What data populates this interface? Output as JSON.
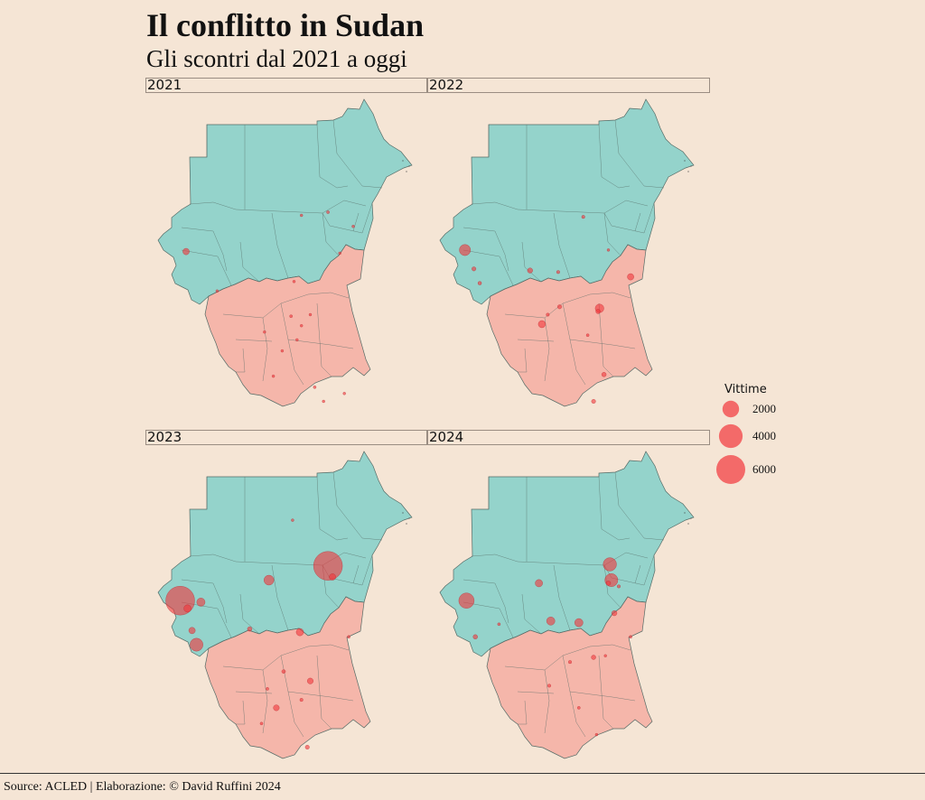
{
  "title": "Il conflitto in Sudan",
  "subtitle": "Gli scontri dal 2021 a oggi",
  "panels": [
    {
      "year": "2021",
      "events": [
        {
          "lon": 22.9,
          "lat": 13.2,
          "victims": 300
        },
        {
          "lon": 30.7,
          "lat": 15.5,
          "victims": 50
        },
        {
          "lon": 32.5,
          "lat": 15.7,
          "victims": 60
        },
        {
          "lon": 34.2,
          "lat": 14.8,
          "victims": 40
        },
        {
          "lon": 30.2,
          "lat": 11.3,
          "victims": 40
        },
        {
          "lon": 33.3,
          "lat": 13.1,
          "victims": 30
        },
        {
          "lon": 25.0,
          "lat": 10.7,
          "victims": 20
        },
        {
          "lon": 30.0,
          "lat": 9.1,
          "victims": 60
        },
        {
          "lon": 31.3,
          "lat": 9.2,
          "victims": 40
        },
        {
          "lon": 28.2,
          "lat": 8.1,
          "victims": 50
        },
        {
          "lon": 30.7,
          "lat": 8.5,
          "victims": 50
        },
        {
          "lon": 29.4,
          "lat": 6.9,
          "victims": 40
        },
        {
          "lon": 30.4,
          "lat": 7.6,
          "victims": 30
        },
        {
          "lon": 31.6,
          "lat": 4.6,
          "victims": 60
        },
        {
          "lon": 33.6,
          "lat": 4.2,
          "victims": 40
        },
        {
          "lon": 32.2,
          "lat": 3.7,
          "victims": 20
        },
        {
          "lon": 28.8,
          "lat": 5.3,
          "victims": 30
        }
      ]
    },
    {
      "year": "2022",
      "events": [
        {
          "lon": 22.7,
          "lat": 13.3,
          "victims": 900
        },
        {
          "lon": 30.7,
          "lat": 15.4,
          "victims": 80
        },
        {
          "lon": 23.3,
          "lat": 12.1,
          "victims": 120
        },
        {
          "lon": 23.7,
          "lat": 11.2,
          "victims": 90
        },
        {
          "lon": 27.1,
          "lat": 12.0,
          "victims": 200
        },
        {
          "lon": 29.0,
          "lat": 11.9,
          "victims": 80
        },
        {
          "lon": 33.9,
          "lat": 11.6,
          "victims": 300
        },
        {
          "lon": 32.4,
          "lat": 13.3,
          "victims": 40
        },
        {
          "lon": 29.1,
          "lat": 9.7,
          "victims": 120
        },
        {
          "lon": 31.8,
          "lat": 9.6,
          "victims": 550
        },
        {
          "lon": 31.7,
          "lat": 9.4,
          "victims": 150
        },
        {
          "lon": 27.9,
          "lat": 8.6,
          "victims": 380
        },
        {
          "lon": 28.3,
          "lat": 9.2,
          "victims": 80
        },
        {
          "lon": 31.0,
          "lat": 7.9,
          "victims": 60
        },
        {
          "lon": 32.1,
          "lat": 5.4,
          "victims": 150
        },
        {
          "lon": 31.4,
          "lat": 3.7,
          "victims": 120
        }
      ]
    },
    {
      "year": "2023",
      "events": [
        {
          "lon": 32.5,
          "lat": 15.6,
          "victims": 6000
        },
        {
          "lon": 32.8,
          "lat": 14.9,
          "victims": 300
        },
        {
          "lon": 22.5,
          "lat": 13.4,
          "victims": 6000
        },
        {
          "lon": 23.0,
          "lat": 12.9,
          "victims": 400
        },
        {
          "lon": 23.9,
          "lat": 13.3,
          "victims": 500
        },
        {
          "lon": 23.3,
          "lat": 11.5,
          "victims": 300
        },
        {
          "lon": 23.6,
          "lat": 10.6,
          "victims": 1200
        },
        {
          "lon": 28.5,
          "lat": 14.7,
          "victims": 700
        },
        {
          "lon": 30.6,
          "lat": 11.4,
          "victims": 400
        },
        {
          "lon": 27.2,
          "lat": 11.6,
          "victims": 150
        },
        {
          "lon": 30.1,
          "lat": 18.5,
          "victims": 40
        },
        {
          "lon": 33.9,
          "lat": 11.1,
          "victims": 60
        },
        {
          "lon": 31.3,
          "lat": 8.3,
          "victims": 250
        },
        {
          "lon": 29.5,
          "lat": 8.9,
          "victims": 100
        },
        {
          "lon": 29.0,
          "lat": 6.6,
          "victims": 250
        },
        {
          "lon": 31.1,
          "lat": 4.1,
          "victims": 120
        },
        {
          "lon": 28.4,
          "lat": 7.8,
          "victims": 60
        },
        {
          "lon": 30.7,
          "lat": 7.1,
          "victims": 80
        },
        {
          "lon": 28.0,
          "lat": 5.6,
          "victims": 60
        }
      ]
    },
    {
      "year": "2024",
      "events": [
        {
          "lon": 32.5,
          "lat": 15.7,
          "victims": 1300
        },
        {
          "lon": 32.6,
          "lat": 14.7,
          "victims": 1200
        },
        {
          "lon": 32.4,
          "lat": 14.5,
          "victims": 150
        },
        {
          "lon": 33.1,
          "lat": 14.3,
          "victims": 80
        },
        {
          "lon": 22.8,
          "lat": 13.4,
          "victims": 1700
        },
        {
          "lon": 23.4,
          "lat": 11.1,
          "victims": 150
        },
        {
          "lon": 27.7,
          "lat": 14.5,
          "victims": 400
        },
        {
          "lon": 28.5,
          "lat": 12.1,
          "victims": 500
        },
        {
          "lon": 30.4,
          "lat": 12.0,
          "victims": 500
        },
        {
          "lon": 32.8,
          "lat": 12.6,
          "victims": 200
        },
        {
          "lon": 25.0,
          "lat": 11.9,
          "victims": 60
        },
        {
          "lon": 33.9,
          "lat": 11.1,
          "victims": 60
        },
        {
          "lon": 31.4,
          "lat": 9.8,
          "victims": 150
        },
        {
          "lon": 29.8,
          "lat": 9.5,
          "victims": 80
        },
        {
          "lon": 32.2,
          "lat": 9.9,
          "victims": 40
        },
        {
          "lon": 28.4,
          "lat": 8.0,
          "victims": 80
        },
        {
          "lon": 30.4,
          "lat": 6.6,
          "victims": 60
        },
        {
          "lon": 31.6,
          "lat": 4.9,
          "victims": 30
        }
      ]
    }
  ],
  "legend": {
    "title": "Vittime",
    "entries": [
      {
        "value": 2000,
        "label": "2000"
      },
      {
        "value": 4000,
        "label": "4000"
      },
      {
        "value": 6000,
        "label": "6000"
      }
    ]
  },
  "colors": {
    "sudan": "#94d3cb",
    "south_sudan": "#f5b6aa",
    "point": "#f2363b",
    "background": "#f5e5d5",
    "border": "#556b66"
  },
  "source": "Source: ACLED | Elaborazione: © David Ruffini 2024"
}
